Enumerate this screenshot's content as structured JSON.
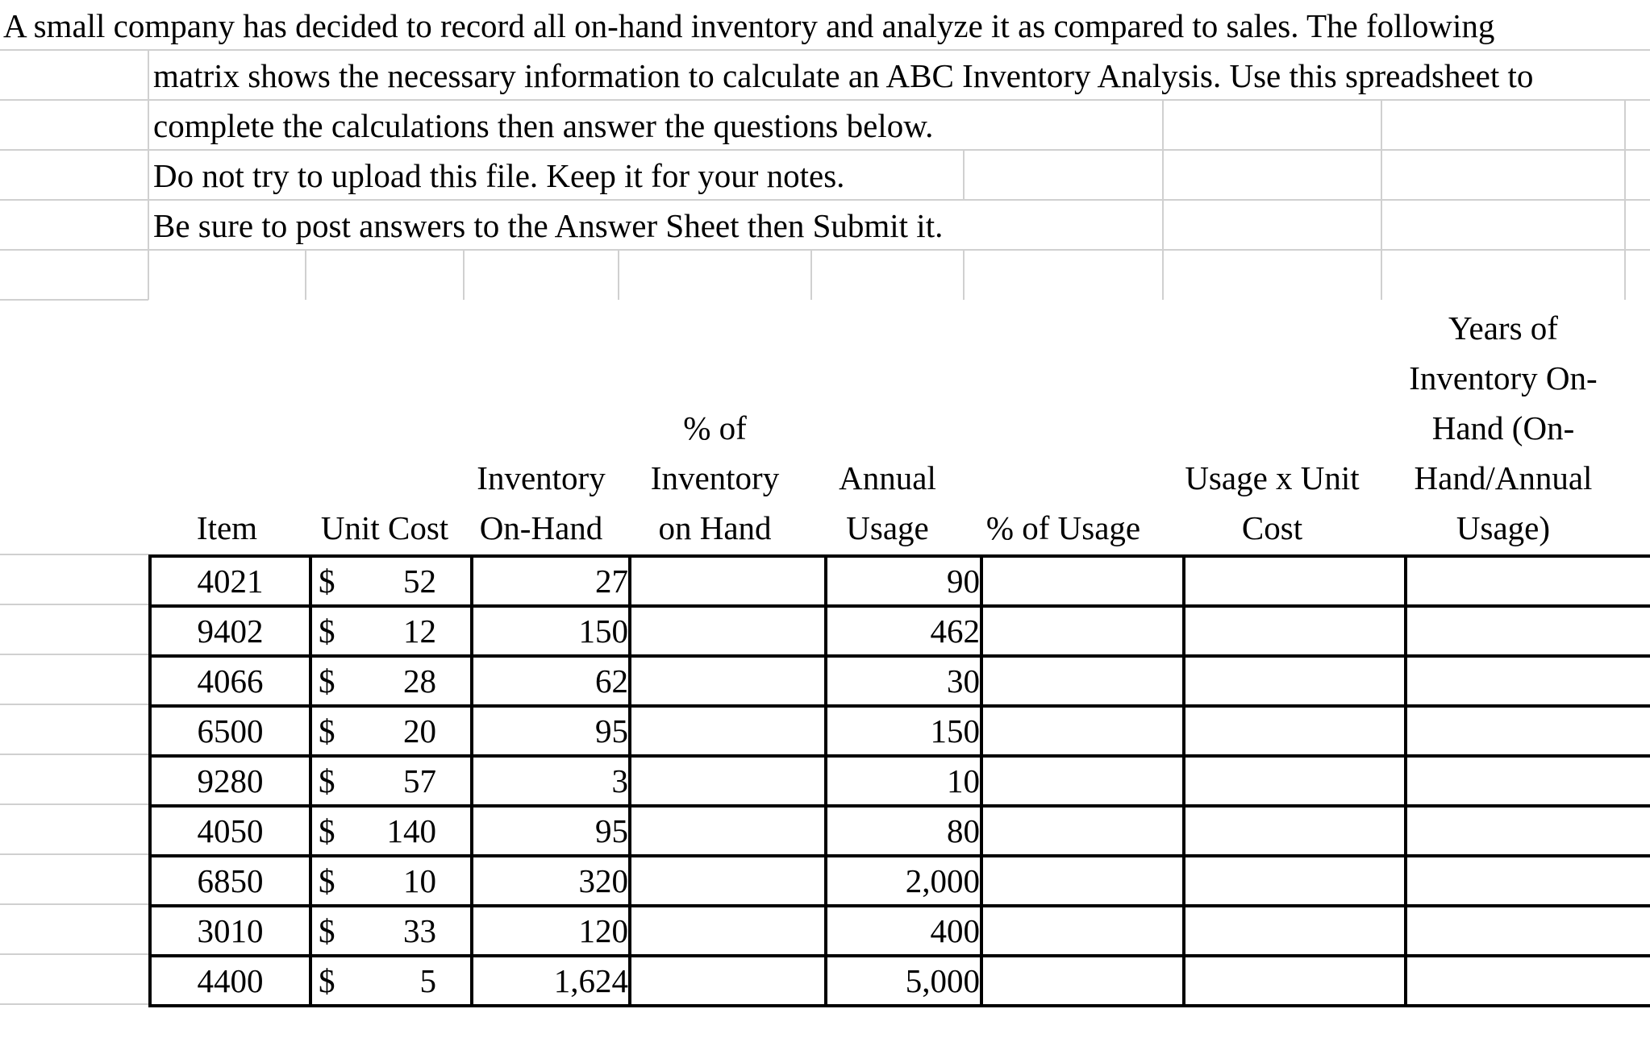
{
  "colors": {
    "background": "#ffffff",
    "grid_line": "#d0d0d0",
    "table_border": "#000000",
    "text": "#000000"
  },
  "instructions": [
    "A small company has decided to record all on-hand inventory and analyze it as compared to sales. The following",
    "matrix shows the necessary information to calculate an ABC Inventory Analysis. Use this spreadsheet to",
    "complete the calculations then answer the questions below.",
    "Do not try to upload this file. Keep it for your notes.",
    "Be sure to post answers to the Answer Sheet then Submit it."
  ],
  "table": {
    "currency_symbol": "$",
    "columns": [
      {
        "key": "item",
        "label": "Item"
      },
      {
        "key": "unit_cost",
        "label": "Unit Cost"
      },
      {
        "key": "inventory_on_hand",
        "label": "Inventory\nOn-Hand"
      },
      {
        "key": "pct_of_inventory_on_hand",
        "label": "% of\nInventory\non Hand"
      },
      {
        "key": "annual_usage",
        "label": "Annual\nUsage"
      },
      {
        "key": "pct_of_usage",
        "label": "% of Usage"
      },
      {
        "key": "usage_x_unit_cost",
        "label": "Usage x Unit\nCost"
      },
      {
        "key": "years_of_inventory_on_hand",
        "label": "Years of\nInventory On-\nHand (On-\nHand/Annual\nUsage)"
      }
    ],
    "rows": [
      {
        "item": "4021",
        "unit_cost": "52",
        "inventory_on_hand": "27",
        "pct_of_inventory_on_hand": "",
        "annual_usage": "90",
        "pct_of_usage": "",
        "usage_x_unit_cost": "",
        "years_of_inventory_on_hand": ""
      },
      {
        "item": "9402",
        "unit_cost": "12",
        "inventory_on_hand": "150",
        "pct_of_inventory_on_hand": "",
        "annual_usage": "462",
        "pct_of_usage": "",
        "usage_x_unit_cost": "",
        "years_of_inventory_on_hand": ""
      },
      {
        "item": "4066",
        "unit_cost": "28",
        "inventory_on_hand": "62",
        "pct_of_inventory_on_hand": "",
        "annual_usage": "30",
        "pct_of_usage": "",
        "usage_x_unit_cost": "",
        "years_of_inventory_on_hand": ""
      },
      {
        "item": "6500",
        "unit_cost": "20",
        "inventory_on_hand": "95",
        "pct_of_inventory_on_hand": "",
        "annual_usage": "150",
        "pct_of_usage": "",
        "usage_x_unit_cost": "",
        "years_of_inventory_on_hand": ""
      },
      {
        "item": "9280",
        "unit_cost": "57",
        "inventory_on_hand": "3",
        "pct_of_inventory_on_hand": "",
        "annual_usage": "10",
        "pct_of_usage": "",
        "usage_x_unit_cost": "",
        "years_of_inventory_on_hand": ""
      },
      {
        "item": "4050",
        "unit_cost": "140",
        "inventory_on_hand": "95",
        "pct_of_inventory_on_hand": "",
        "annual_usage": "80",
        "pct_of_usage": "",
        "usage_x_unit_cost": "",
        "years_of_inventory_on_hand": ""
      },
      {
        "item": "6850",
        "unit_cost": "10",
        "inventory_on_hand": "320",
        "pct_of_inventory_on_hand": "",
        "annual_usage": "2,000",
        "pct_of_usage": "",
        "usage_x_unit_cost": "",
        "years_of_inventory_on_hand": ""
      },
      {
        "item": "3010",
        "unit_cost": "33",
        "inventory_on_hand": "120",
        "pct_of_inventory_on_hand": "",
        "annual_usage": "400",
        "pct_of_usage": "",
        "usage_x_unit_cost": "",
        "years_of_inventory_on_hand": ""
      },
      {
        "item": "4400",
        "unit_cost": "5",
        "inventory_on_hand": "1,624",
        "pct_of_inventory_on_hand": "",
        "annual_usage": "5,000",
        "pct_of_usage": "",
        "usage_x_unit_cost": "",
        "years_of_inventory_on_hand": ""
      }
    ]
  }
}
